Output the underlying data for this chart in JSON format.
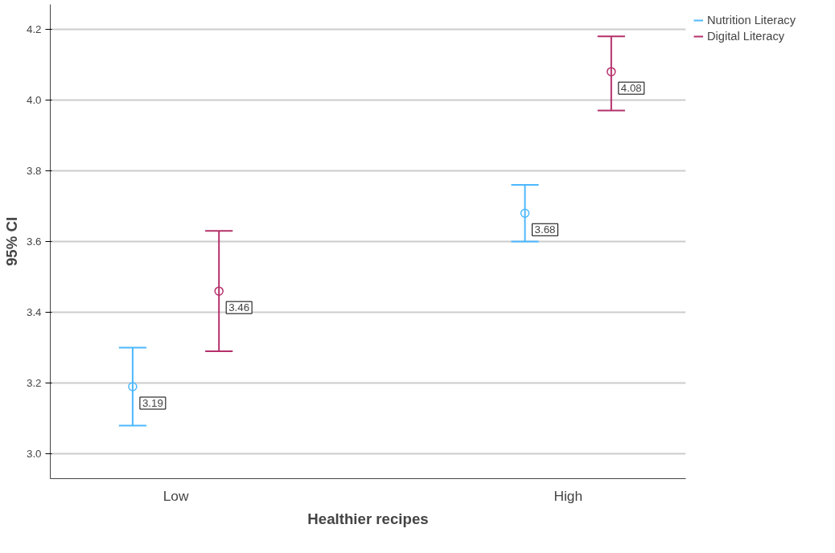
{
  "chart_data": {
    "type": "scatter",
    "xlabel": "Healthier recipes",
    "ylabel": "95% CI",
    "categories": [
      "Low",
      "High"
    ],
    "series": [
      {
        "name": "Nutrition Literacy",
        "color": "#4db8ff",
        "values": [
          3.19,
          3.68
        ],
        "errors": [
          [
            3.08,
            3.3
          ],
          [
            3.6,
            3.76
          ]
        ]
      },
      {
        "name": "Digital Literacy",
        "color": "#b5306a",
        "values": [
          3.46,
          4.08
        ],
        "errors": [
          [
            3.29,
            3.63
          ],
          [
            3.97,
            4.18
          ]
        ]
      }
    ],
    "ylim": [
      2.93,
      4.27
    ],
    "yticks": [
      {
        "value": 3.0,
        "label": "3.0"
      },
      {
        "value": 3.2,
        "label": "3.2"
      },
      {
        "value": 3.4,
        "label": "3.4"
      },
      {
        "value": 3.6,
        "label": "3.6"
      },
      {
        "value": 3.8,
        "label": "3.8"
      },
      {
        "value": 4.0,
        "label": "4.0"
      },
      {
        "value": 4.2,
        "label": "4.2"
      }
    ],
    "grid": "y",
    "legend": "top right",
    "marker": "circle",
    "data_labels": true
  }
}
